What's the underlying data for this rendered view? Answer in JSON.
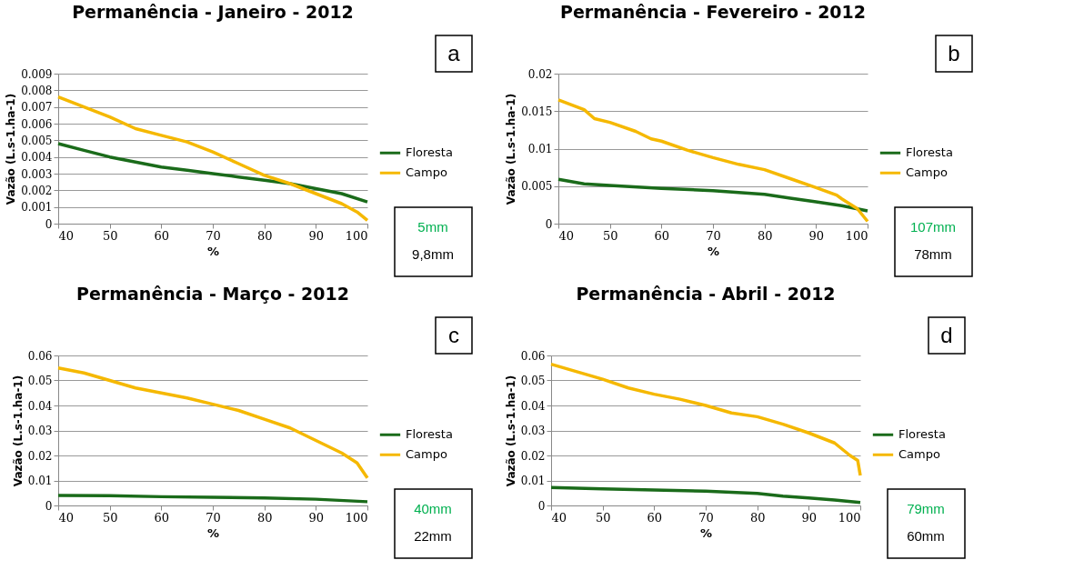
{
  "chart_data": [
    {
      "type": "line",
      "title": "Permanência - Janeiro - 2012",
      "xlabel": "%",
      "ylabel": "Vazão  (L.s-1.ha-1)",
      "xlim": [
        40,
        100
      ],
      "xticks": [
        40,
        50,
        60,
        70,
        80,
        90,
        100
      ],
      "ylim": [
        0,
        0.009
      ],
      "yticks": [
        0,
        0.001,
        0.002,
        0.003,
        0.004,
        0.005,
        0.006,
        0.007,
        0.008,
        0.009
      ],
      "grid": "y",
      "legend": "right",
      "annotations": [
        "a",
        "5mm",
        "9,8mm"
      ],
      "series": [
        {
          "name": "Floresta",
          "color": "#1a6b1a",
          "x": [
            40,
            45,
            50,
            55,
            60,
            65,
            70,
            75,
            80,
            85,
            90,
            95,
            100
          ],
          "values": [
            0.0048,
            0.0044,
            0.004,
            0.0037,
            0.0034,
            0.0032,
            0.003,
            0.0028,
            0.0026,
            0.0024,
            0.0021,
            0.0018,
            0.0013
          ]
        },
        {
          "name": "Campo",
          "color": "#f5b800",
          "x": [
            40,
            45,
            50,
            55,
            60,
            65,
            70,
            75,
            80,
            85,
            90,
            95,
            98,
            100
          ],
          "values": [
            0.0076,
            0.007,
            0.0064,
            0.0057,
            0.0053,
            0.0049,
            0.0043,
            0.0036,
            0.0029,
            0.0024,
            0.0018,
            0.0012,
            0.0007,
            0.0002
          ]
        }
      ]
    },
    {
      "type": "line",
      "title": "Permanência - Fevereiro - 2012",
      "xlabel": "%",
      "ylabel": "Vazão  (L.s-1.ha-1)",
      "xlim": [
        40,
        100
      ],
      "xticks": [
        40,
        50,
        60,
        70,
        80,
        90,
        100
      ],
      "ylim": [
        0,
        0.02
      ],
      "yticks": [
        0,
        0.005,
        0.01,
        0.015,
        0.02
      ],
      "grid": "y",
      "legend": "right",
      "annotations": [
        "b",
        "107mm",
        "78mm"
      ],
      "series": [
        {
          "name": "Floresta",
          "color": "#1a6b1a",
          "x": [
            40,
            45,
            50,
            60,
            70,
            80,
            85,
            90,
            95,
            100
          ],
          "values": [
            0.0059,
            0.0053,
            0.0051,
            0.0047,
            0.0044,
            0.0039,
            0.0034,
            0.0029,
            0.0024,
            0.0017
          ]
        },
        {
          "name": "Campo",
          "color": "#f5b800",
          "x": [
            40,
            45,
            47,
            50,
            55,
            58,
            60,
            65,
            70,
            75,
            80,
            85,
            90,
            94,
            95,
            98,
            100
          ],
          "values": [
            0.0165,
            0.0152,
            0.014,
            0.0135,
            0.0123,
            0.0113,
            0.011,
            0.0098,
            0.0088,
            0.0079,
            0.0072,
            0.006,
            0.0048,
            0.0038,
            0.0033,
            0.002,
            0.0003
          ]
        }
      ]
    },
    {
      "type": "line",
      "title": "Permanência - Março - 2012",
      "xlabel": "%",
      "ylabel": "Vazão  (L.s-1.ha-1)",
      "xlim": [
        40,
        100
      ],
      "xticks": [
        40,
        50,
        60,
        70,
        80,
        90,
        100
      ],
      "ylim": [
        0,
        0.06
      ],
      "yticks": [
        0,
        0.01,
        0.02,
        0.03,
        0.04,
        0.05,
        0.06
      ],
      "grid": "y",
      "legend": "right",
      "annotations": [
        "c",
        "40mm",
        "22mm"
      ],
      "series": [
        {
          "name": "Floresta",
          "color": "#1a6b1a",
          "x": [
            40,
            50,
            60,
            70,
            80,
            90,
            100
          ],
          "values": [
            0.004,
            0.0039,
            0.0035,
            0.0033,
            0.003,
            0.0025,
            0.0015
          ]
        },
        {
          "name": "Campo",
          "color": "#f5b800",
          "x": [
            40,
            45,
            50,
            55,
            60,
            65,
            70,
            75,
            80,
            85,
            87,
            90,
            95,
            98,
            100
          ],
          "values": [
            0.055,
            0.053,
            0.05,
            0.047,
            0.045,
            0.043,
            0.0405,
            0.038,
            0.0345,
            0.031,
            0.029,
            0.026,
            0.021,
            0.017,
            0.011
          ]
        }
      ]
    },
    {
      "type": "line",
      "title": "Permanência - Abril - 2012",
      "xlabel": "%",
      "ylabel": "Vazão  (L.s-1.ha-1)",
      "xlim": [
        40,
        100
      ],
      "xticks": [
        40,
        50,
        60,
        70,
        80,
        90,
        100
      ],
      "ylim": [
        0,
        0.06
      ],
      "yticks": [
        0,
        0.01,
        0.02,
        0.03,
        0.04,
        0.05,
        0.06
      ],
      "grid": "y",
      "legend": "right",
      "annotations": [
        "d",
        "79mm",
        "60mm"
      ],
      "series": [
        {
          "name": "Floresta",
          "color": "#1a6b1a",
          "x": [
            40,
            50,
            60,
            70,
            80,
            85,
            90,
            95,
            100
          ],
          "values": [
            0.0072,
            0.0066,
            0.0062,
            0.0057,
            0.0048,
            0.0037,
            0.003,
            0.0022,
            0.0012
          ]
        },
        {
          "name": "Campo",
          "color": "#f5b800",
          "x": [
            40,
            45,
            50,
            55,
            60,
            65,
            70,
            75,
            80,
            85,
            90,
            95,
            98,
            99.5,
            100
          ],
          "values": [
            0.0565,
            0.0535,
            0.0505,
            0.047,
            0.0445,
            0.0425,
            0.04,
            0.037,
            0.0355,
            0.0325,
            0.029,
            0.025,
            0.02,
            0.018,
            0.012
          ]
        }
      ]
    }
  ]
}
